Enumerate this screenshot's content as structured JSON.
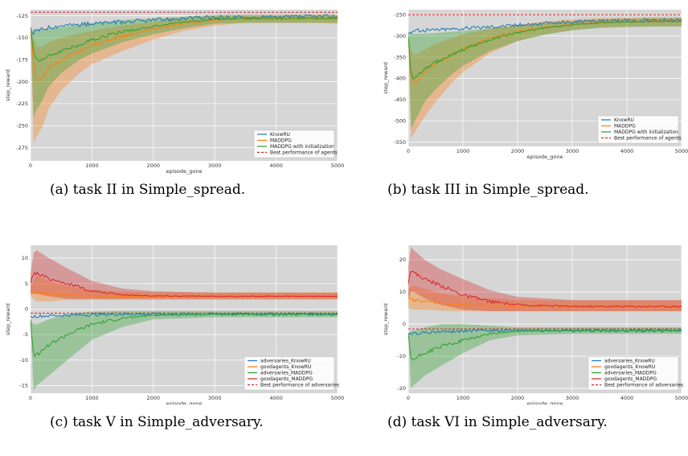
{
  "chart_data": [
    {
      "type": "line",
      "caption": "(a) task II in Simple_spread.",
      "xlabel": "episode_gone",
      "ylabel": "step_reward",
      "xlim": [
        0,
        5000
      ],
      "ylim": [
        -290,
        -118
      ],
      "xticks": [
        0,
        1000,
        2000,
        3000,
        4000,
        5000
      ],
      "yticks": [
        -125,
        -150,
        -175,
        -200,
        -225,
        -250,
        -275
      ],
      "legend_position": "bottom-right",
      "grid": true,
      "series": [
        {
          "name": "KnowRU",
          "color": "#1f77b4",
          "band": 4,
          "x": [
            0,
            50,
            100,
            200,
            300,
            500,
            800,
            1000,
            1500,
            2000,
            2500,
            3000,
            3500,
            4000,
            4500,
            5000
          ],
          "y": [
            -140,
            -145,
            -142,
            -140,
            -138,
            -136,
            -135,
            -134,
            -132,
            -130,
            -128,
            -127,
            -127,
            -127,
            -126,
            -126
          ],
          "low": [],
          "high": []
        },
        {
          "name": "MADDPG",
          "color": "#ff7f0e",
          "band": 0,
          "x": [
            0,
            50,
            100,
            200,
            300,
            500,
            800,
            1000,
            1500,
            2000,
            2500,
            3000,
            3500,
            4000,
            4500,
            5000
          ],
          "y": [
            -140,
            -180,
            -200,
            -195,
            -185,
            -175,
            -165,
            -158,
            -148,
            -140,
            -134,
            -130,
            -128,
            -128,
            -128,
            -129
          ],
          "low": [
            -140,
            -270,
            -262,
            -250,
            -230,
            -210,
            -190,
            -180,
            -165,
            -152,
            -142,
            -136,
            -133,
            -133,
            -133,
            -134
          ],
          "high": [
            -140,
            -150,
            -160,
            -160,
            -155,
            -150,
            -145,
            -142,
            -136,
            -132,
            -128,
            -125,
            -124,
            -124,
            -124,
            -124
          ]
        },
        {
          "name": "MADDPG with initialization",
          "color": "#2ca02c",
          "band": 0,
          "x": [
            0,
            50,
            100,
            200,
            300,
            500,
            800,
            1000,
            1500,
            2000,
            2500,
            3000,
            3500,
            4000,
            4500,
            5000
          ],
          "y": [
            -145,
            -165,
            -175,
            -175,
            -170,
            -165,
            -158,
            -152,
            -143,
            -137,
            -132,
            -129,
            -128,
            -128,
            -128,
            -128
          ],
          "low": [
            -145,
            -240,
            -232,
            -220,
            -205,
            -190,
            -175,
            -168,
            -155,
            -146,
            -139,
            -134,
            -133,
            -133,
            -133,
            -133
          ],
          "high": [
            -145,
            -140,
            -140,
            -140,
            -140,
            -138,
            -135,
            -133,
            -130,
            -128,
            -126,
            -124,
            -124,
            -124,
            -124,
            -124
          ]
        },
        {
          "name": "Best performance of agents",
          "color": "#d62728",
          "dashed": true,
          "x": [
            0,
            5000
          ],
          "y": [
            -121,
            -121
          ],
          "low": [],
          "high": []
        }
      ]
    },
    {
      "type": "line",
      "caption": "(b) task III in Simple_spread.",
      "xlabel": "episode_gone",
      "ylabel": "step_reward",
      "xlim": [
        0,
        5000
      ],
      "ylim": [
        -560,
        -238
      ],
      "xticks": [
        0,
        1000,
        2000,
        3000,
        4000,
        5000
      ],
      "yticks": [
        -250,
        -300,
        -350,
        -400,
        -450,
        -500,
        -550
      ],
      "legend_position": "bottom-right",
      "grid": true,
      "series": [
        {
          "name": "KnowRU",
          "color": "#1f77b4",
          "band": 7,
          "x": [
            0,
            50,
            100,
            200,
            300,
            500,
            800,
            1000,
            1500,
            2000,
            2500,
            3000,
            3500,
            4000,
            4500,
            5000
          ],
          "y": [
            -295,
            -290,
            -288,
            -287,
            -287,
            -285,
            -283,
            -282,
            -278,
            -274,
            -270,
            -267,
            -265,
            -264,
            -263,
            -262
          ],
          "low": [],
          "high": []
        },
        {
          "name": "MADDPG",
          "color": "#ff7f0e",
          "band": 0,
          "x": [
            0,
            50,
            100,
            200,
            300,
            500,
            800,
            1000,
            1500,
            2000,
            2500,
            3000,
            3500,
            4000,
            4500,
            5000
          ],
          "y": [
            -300,
            -400,
            -415,
            -400,
            -385,
            -365,
            -345,
            -330,
            -305,
            -290,
            -280,
            -273,
            -268,
            -266,
            -265,
            -265
          ],
          "low": [
            -300,
            -540,
            -530,
            -510,
            -490,
            -455,
            -410,
            -385,
            -340,
            -312,
            -296,
            -286,
            -280,
            -278,
            -277,
            -277
          ],
          "high": [
            -300,
            -330,
            -345,
            -340,
            -332,
            -318,
            -305,
            -296,
            -283,
            -274,
            -266,
            -261,
            -258,
            -257,
            -256,
            -256
          ]
        },
        {
          "name": "MADDPG with initialization",
          "color": "#2ca02c",
          "band": 0,
          "x": [
            0,
            50,
            100,
            200,
            300,
            500,
            800,
            1000,
            1500,
            2000,
            2500,
            3000,
            3500,
            4000,
            4500,
            5000
          ],
          "y": [
            -300,
            -390,
            -400,
            -390,
            -378,
            -362,
            -345,
            -332,
            -308,
            -292,
            -281,
            -274,
            -269,
            -267,
            -266,
            -266
          ],
          "low": [
            -300,
            -520,
            -505,
            -480,
            -455,
            -425,
            -390,
            -370,
            -335,
            -312,
            -297,
            -287,
            -281,
            -279,
            -278,
            -278
          ],
          "high": [
            -300,
            -290,
            -295,
            -295,
            -295,
            -293,
            -290,
            -288,
            -282,
            -276,
            -270,
            -265,
            -261,
            -259,
            -258,
            -258
          ]
        },
        {
          "name": "Best performance of agents",
          "color": "#d62728",
          "dashed": true,
          "x": [
            0,
            5000
          ],
          "y": [
            -250,
            -250
          ],
          "low": [],
          "high": []
        }
      ]
    },
    {
      "type": "line",
      "caption": "(c) task V in Simple_adversary.",
      "xlabel": "episode_gone",
      "ylabel": "step_reward",
      "xlim": [
        0,
        5000
      ],
      "ylim": [
        -16.5,
        12.5
      ],
      "xticks": [
        0,
        1000,
        2000,
        3000,
        4000,
        5000
      ],
      "yticks": [
        10,
        5,
        0,
        -5,
        -10,
        -15
      ],
      "legend_position": "bottom-right",
      "grid": true,
      "series": [
        {
          "name": "adversaries_KnowRU",
          "color": "#1f77b4",
          "band": 0.5,
          "x": [
            0,
            100,
            300,
            600,
            1000,
            1500,
            2000,
            3000,
            4000,
            5000
          ],
          "y": [
            -1.5,
            -1.4,
            -1.3,
            -1.2,
            -1.1,
            -1.0,
            -1.0,
            -1.0,
            -1.0,
            -1.0
          ],
          "low": [],
          "high": []
        },
        {
          "name": "goodagents_KnowRU",
          "color": "#ff7f0e",
          "band": 0,
          "x": [
            0,
            100,
            300,
            600,
            1000,
            1500,
            2000,
            3000,
            4000,
            5000
          ],
          "y": [
            3.5,
            3.2,
            3.0,
            2.8,
            2.6,
            2.5,
            2.5,
            2.5,
            2.5,
            2.5
          ],
          "low": [
            2.5,
            1.5,
            1.5,
            1.8,
            1.8,
            1.8,
            1.8,
            1.8,
            1.8,
            1.8
          ],
          "high": [
            4.5,
            6.5,
            5.5,
            4.5,
            3.8,
            3.4,
            3.3,
            3.3,
            3.3,
            3.3
          ]
        },
        {
          "name": "adversaries_MADDPG",
          "color": "#2ca02c",
          "band": 0,
          "x": [
            0,
            50,
            100,
            300,
            600,
            1000,
            1500,
            2000,
            3000,
            4000,
            5000
          ],
          "y": [
            -2,
            -9,
            -9,
            -7,
            -5,
            -3,
            -1.8,
            -1.2,
            -1.0,
            -1.0,
            -1.0
          ],
          "low": [
            -2,
            -16,
            -15,
            -13,
            -10,
            -6,
            -3.5,
            -2,
            -1.6,
            -1.6,
            -1.6
          ],
          "high": [
            -2,
            -3,
            -3,
            -2,
            -1,
            -0.5,
            -0.4,
            -0.4,
            -0.4,
            -0.4,
            -0.4
          ]
        },
        {
          "name": "goodagents_MADDPG",
          "color": "#d62728",
          "band": 0,
          "x": [
            0,
            50,
            100,
            300,
            600,
            1000,
            1500,
            2000,
            3000,
            4000,
            5000
          ],
          "y": [
            5,
            7,
            7,
            6,
            5,
            3.5,
            2.8,
            2.6,
            2.5,
            2.5,
            2.5
          ],
          "low": [
            3,
            3,
            3,
            2.5,
            2,
            2,
            2,
            2,
            2,
            2,
            2
          ],
          "high": [
            7,
            11,
            11.5,
            10,
            8,
            5.5,
            4,
            3.5,
            3.2,
            3.2,
            3.2
          ]
        },
        {
          "name": "Best performance of adversaries",
          "color": "#d62728",
          "dashed": true,
          "x": [
            0,
            5000
          ],
          "y": [
            -0.8,
            -0.8
          ],
          "low": [],
          "high": []
        }
      ]
    },
    {
      "type": "line",
      "caption": "(d) task VI in Simple_adversary.",
      "xlabel": "episode_gone",
      "ylabel": "step_reward",
      "xlim": [
        0,
        5000
      ],
      "ylim": [
        -21.5,
        24.5
      ],
      "xticks": [
        0,
        1000,
        2000,
        3000,
        4000,
        5000
      ],
      "yticks": [
        20,
        10,
        0,
        -10,
        -20
      ],
      "legend_position": "bottom-right",
      "grid": true,
      "series": [
        {
          "name": "adversaries_KnowRU",
          "color": "#1f77b4",
          "band": 0.8,
          "x": [
            0,
            100,
            300,
            600,
            1000,
            1500,
            2000,
            3000,
            4000,
            5000
          ],
          "y": [
            -3,
            -2.8,
            -2.6,
            -2.4,
            -2.2,
            -2.0,
            -2.0,
            -2.0,
            -2.0,
            -2.0
          ],
          "low": [],
          "high": []
        },
        {
          "name": "goodagents_KnowRU",
          "color": "#ff7f0e",
          "band": 0,
          "x": [
            0,
            100,
            300,
            600,
            1000,
            1500,
            2000,
            3000,
            4000,
            5000
          ],
          "y": [
            8,
            7.5,
            7,
            6.5,
            6,
            5.8,
            5.6,
            5.5,
            5.5,
            5.5
          ],
          "low": [
            5,
            4.5,
            4.5,
            4.2,
            4,
            4,
            4,
            4,
            4,
            4
          ],
          "high": [
            11,
            12,
            11,
            9.5,
            8.5,
            8,
            7.5,
            7.3,
            7.3,
            7.3
          ]
        },
        {
          "name": "adversaries_MADDPG",
          "color": "#2ca02c",
          "band": 0,
          "x": [
            0,
            50,
            100,
            300,
            600,
            1000,
            1500,
            2000,
            3000,
            4000,
            5000
          ],
          "y": [
            -3,
            -11,
            -11,
            -9,
            -7,
            -5,
            -3,
            -2.2,
            -2.0,
            -2.0,
            -2.0
          ],
          "low": [
            -3,
            -20,
            -19,
            -16,
            -13,
            -9,
            -5,
            -3.5,
            -3,
            -3,
            -3
          ],
          "high": [
            -3,
            -2,
            -2,
            -1,
            0,
            0,
            -0.5,
            -1,
            -1,
            -1,
            -1
          ]
        },
        {
          "name": "goodagents_MADDPG",
          "color": "#d62728",
          "band": 0,
          "x": [
            0,
            50,
            100,
            300,
            600,
            1000,
            1500,
            2000,
            3000,
            4000,
            5000
          ],
          "y": [
            13,
            17,
            16,
            14,
            12,
            9,
            7,
            6,
            5.5,
            5.5,
            5.5
          ],
          "low": [
            8,
            10,
            10,
            8,
            6,
            4.5,
            4,
            4,
            4,
            4,
            4
          ],
          "high": [
            18,
            24,
            23,
            20,
            17,
            14,
            10.5,
            8.5,
            7.5,
            7.5,
            7.5
          ]
        },
        {
          "name": "Best performance of adversaries",
          "color": "#d62728",
          "dashed": true,
          "x": [
            0,
            5000
          ],
          "y": [
            -1.5,
            -1.5
          ],
          "low": [],
          "high": []
        }
      ]
    }
  ]
}
